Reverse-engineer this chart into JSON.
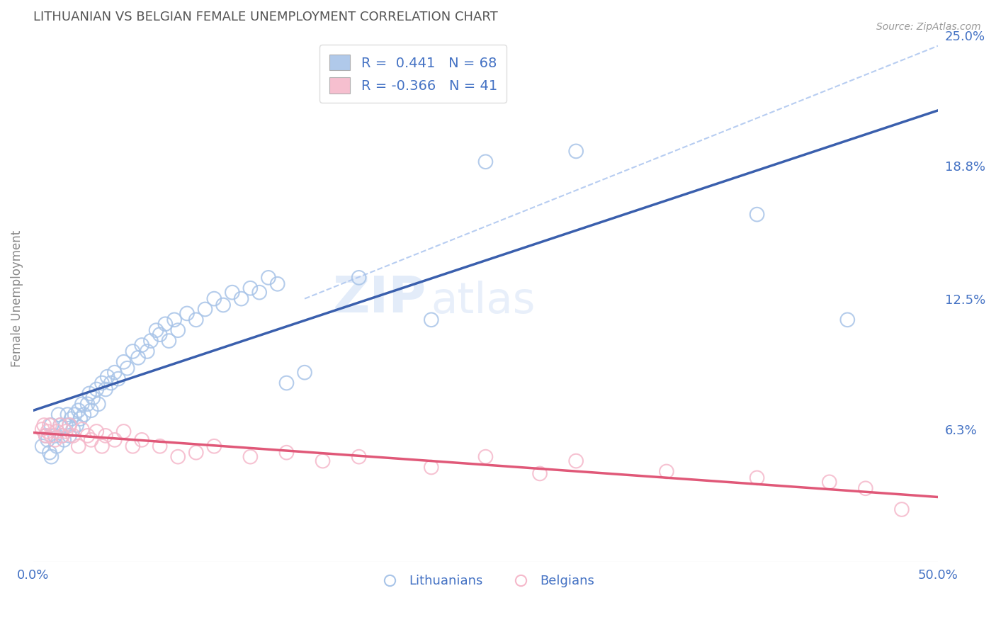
{
  "title": "LITHUANIAN VS BELGIAN FEMALE UNEMPLOYMENT CORRELATION CHART",
  "source_text": "Source: ZipAtlas.com",
  "ylabel": "Female Unemployment",
  "xlim": [
    0.0,
    0.5
  ],
  "ylim": [
    0.0,
    0.25
  ],
  "yticks": [
    0.063,
    0.125,
    0.188,
    0.25
  ],
  "ytick_labels": [
    "6.3%",
    "12.5%",
    "18.8%",
    "25.0%"
  ],
  "xticks": [
    0.0,
    0.5
  ],
  "xtick_labels": [
    "0.0%",
    "50.0%"
  ],
  "background_color": "#ffffff",
  "grid_color": "#cccccc",
  "title_color": "#555555",
  "axis_color": "#4472c4",
  "r1": 0.441,
  "n1": 68,
  "r2": -0.366,
  "n2": 41,
  "blue_color": "#a8c4e8",
  "pink_color": "#f5b8ca",
  "blue_line_color": "#3a5fad",
  "pink_line_color": "#e05878",
  "diag_line_color": "#b0c8f0",
  "legend_label1": "Lithuanians",
  "legend_label2": "Belgians",
  "lith_x": [
    0.005,
    0.007,
    0.008,
    0.009,
    0.01,
    0.01,
    0.012,
    0.013,
    0.014,
    0.015,
    0.016,
    0.017,
    0.018,
    0.019,
    0.02,
    0.02,
    0.021,
    0.022,
    0.023,
    0.024,
    0.025,
    0.026,
    0.027,
    0.028,
    0.03,
    0.031,
    0.032,
    0.033,
    0.035,
    0.036,
    0.038,
    0.04,
    0.041,
    0.043,
    0.045,
    0.047,
    0.05,
    0.052,
    0.055,
    0.058,
    0.06,
    0.063,
    0.065,
    0.068,
    0.07,
    0.073,
    0.075,
    0.078,
    0.08,
    0.085,
    0.09,
    0.095,
    0.1,
    0.105,
    0.11,
    0.115,
    0.12,
    0.125,
    0.13,
    0.135,
    0.14,
    0.15,
    0.18,
    0.22,
    0.25,
    0.3,
    0.4,
    0.45
  ],
  "lith_y": [
    0.055,
    0.06,
    0.058,
    0.052,
    0.05,
    0.065,
    0.06,
    0.055,
    0.07,
    0.065,
    0.06,
    0.058,
    0.065,
    0.07,
    0.06,
    0.065,
    0.068,
    0.063,
    0.07,
    0.065,
    0.072,
    0.068,
    0.075,
    0.07,
    0.075,
    0.08,
    0.072,
    0.078,
    0.082,
    0.075,
    0.085,
    0.082,
    0.088,
    0.085,
    0.09,
    0.087,
    0.095,
    0.092,
    0.1,
    0.097,
    0.103,
    0.1,
    0.105,
    0.11,
    0.108,
    0.113,
    0.105,
    0.115,
    0.11,
    0.118,
    0.115,
    0.12,
    0.125,
    0.122,
    0.128,
    0.125,
    0.13,
    0.128,
    0.135,
    0.132,
    0.085,
    0.09,
    0.135,
    0.115,
    0.19,
    0.195,
    0.165,
    0.115
  ],
  "belg_x": [
    0.005,
    0.006,
    0.007,
    0.008,
    0.009,
    0.01,
    0.012,
    0.013,
    0.015,
    0.016,
    0.018,
    0.02,
    0.022,
    0.025,
    0.027,
    0.03,
    0.032,
    0.035,
    0.038,
    0.04,
    0.045,
    0.05,
    0.055,
    0.06,
    0.07,
    0.08,
    0.09,
    0.1,
    0.12,
    0.14,
    0.16,
    0.18,
    0.22,
    0.25,
    0.28,
    0.3,
    0.35,
    0.4,
    0.44,
    0.46,
    0.48
  ],
  "belg_y": [
    0.063,
    0.065,
    0.06,
    0.062,
    0.065,
    0.06,
    0.058,
    0.062,
    0.065,
    0.06,
    0.062,
    0.065,
    0.06,
    0.055,
    0.063,
    0.06,
    0.058,
    0.062,
    0.055,
    0.06,
    0.058,
    0.062,
    0.055,
    0.058,
    0.055,
    0.05,
    0.052,
    0.055,
    0.05,
    0.052,
    0.048,
    0.05,
    0.045,
    0.05,
    0.042,
    0.048,
    0.043,
    0.04,
    0.038,
    0.035,
    0.025
  ]
}
